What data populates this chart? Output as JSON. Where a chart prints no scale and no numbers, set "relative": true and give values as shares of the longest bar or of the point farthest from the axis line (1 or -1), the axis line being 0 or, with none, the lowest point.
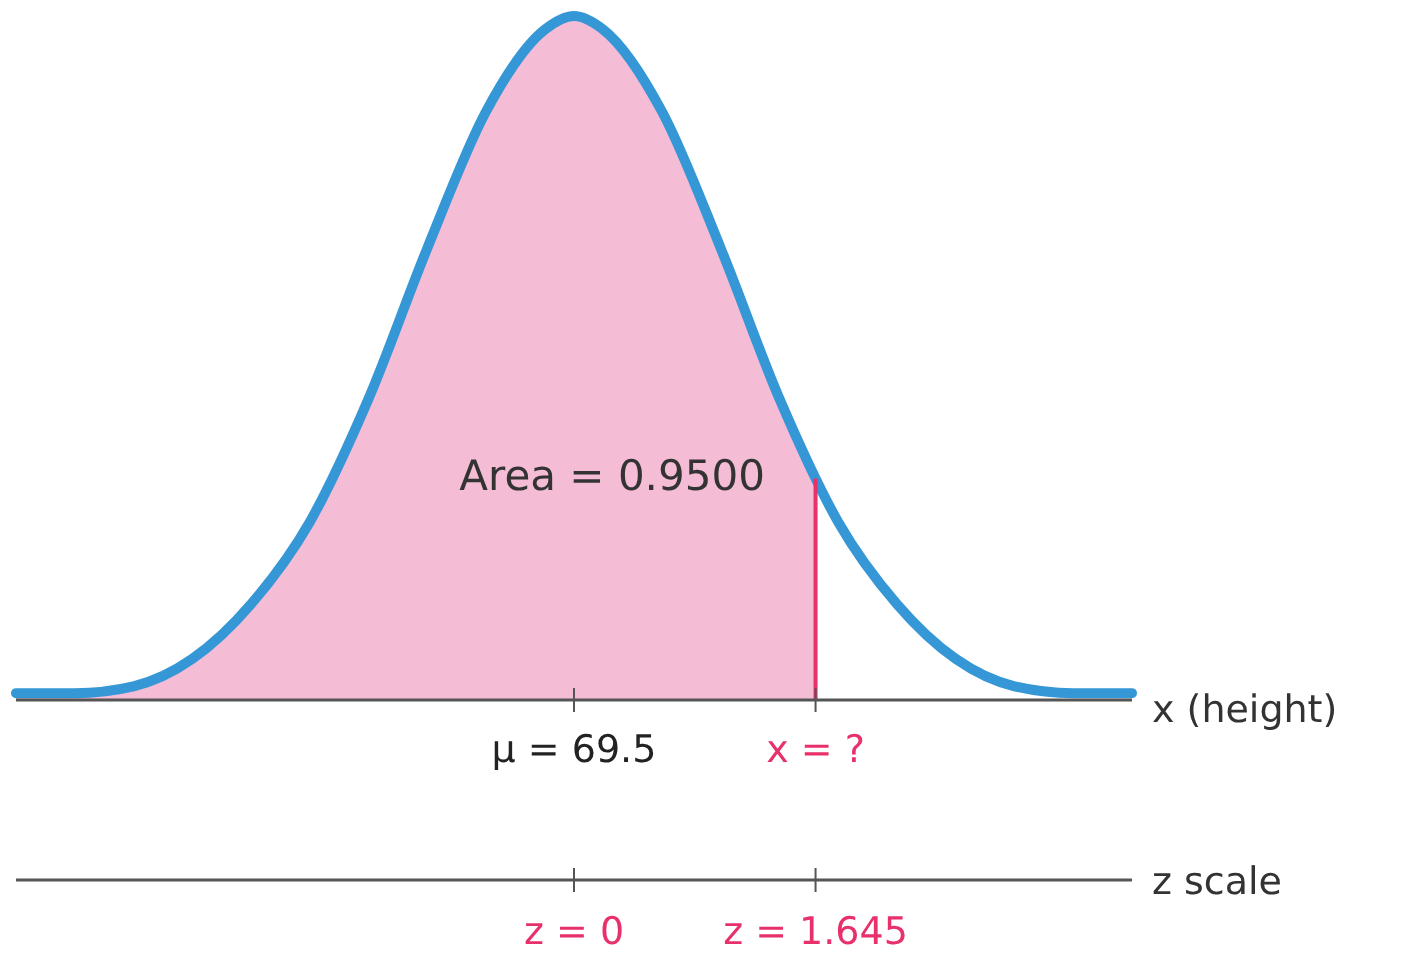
{
  "chart_data": {
    "type": "line",
    "relative": true,
    "xlabel": "z scale",
    "x2label": "x (height)",
    "xlim": [
      -3.8,
      3.8
    ],
    "xticks": [
      {
        "value": 0,
        "label": "z = 0"
      },
      {
        "value": 1.645,
        "label": "z = 1.645"
      }
    ],
    "series": [
      {
        "type": "area",
        "color": "#f5bcd6",
        "x": [
          -3.8,
          -3.4,
          -3.0,
          -2.6,
          -2.2,
          -1.8,
          -1.4,
          -1.0,
          -0.6,
          -0.2,
          0,
          0.2,
          0.6,
          1.0,
          1.4,
          1.645
        ],
        "values": [
          0.01,
          0.01,
          0.02,
          0.06,
          0.14,
          0.26,
          0.44,
          0.66,
          0.86,
          0.98,
          1,
          0.98,
          0.86,
          0.66,
          0.44,
          0.33
        ]
      },
      {
        "color": "#3597d6",
        "x": [
          -3.8,
          -3.4,
          -3.0,
          -2.6,
          -2.2,
          -1.8,
          -1.4,
          -1.0,
          -0.6,
          -0.2,
          0,
          0.2,
          0.6,
          1.0,
          1.4,
          1.8,
          2.2,
          2.6,
          3.0,
          3.4,
          3.8
        ],
        "values": [
          0.01,
          0.01,
          0.02,
          0.06,
          0.14,
          0.26,
          0.44,
          0.66,
          0.86,
          0.98,
          1,
          0.98,
          0.86,
          0.66,
          0.44,
          0.26,
          0.14,
          0.06,
          0.02,
          0.01,
          0.01
        ]
      }
    ],
    "ref_lines": [
      {
        "axis": "x",
        "value": 1.645,
        "color": "#e8306a"
      }
    ],
    "annotations": [
      "Area = 0.9500",
      {
        "text": "μ = 69.5",
        "x": 0
      },
      {
        "text": "x = ?",
        "x": 1.645
      }
    ],
    "grid": false,
    "marker": "none",
    "line_style": "solid"
  }
}
